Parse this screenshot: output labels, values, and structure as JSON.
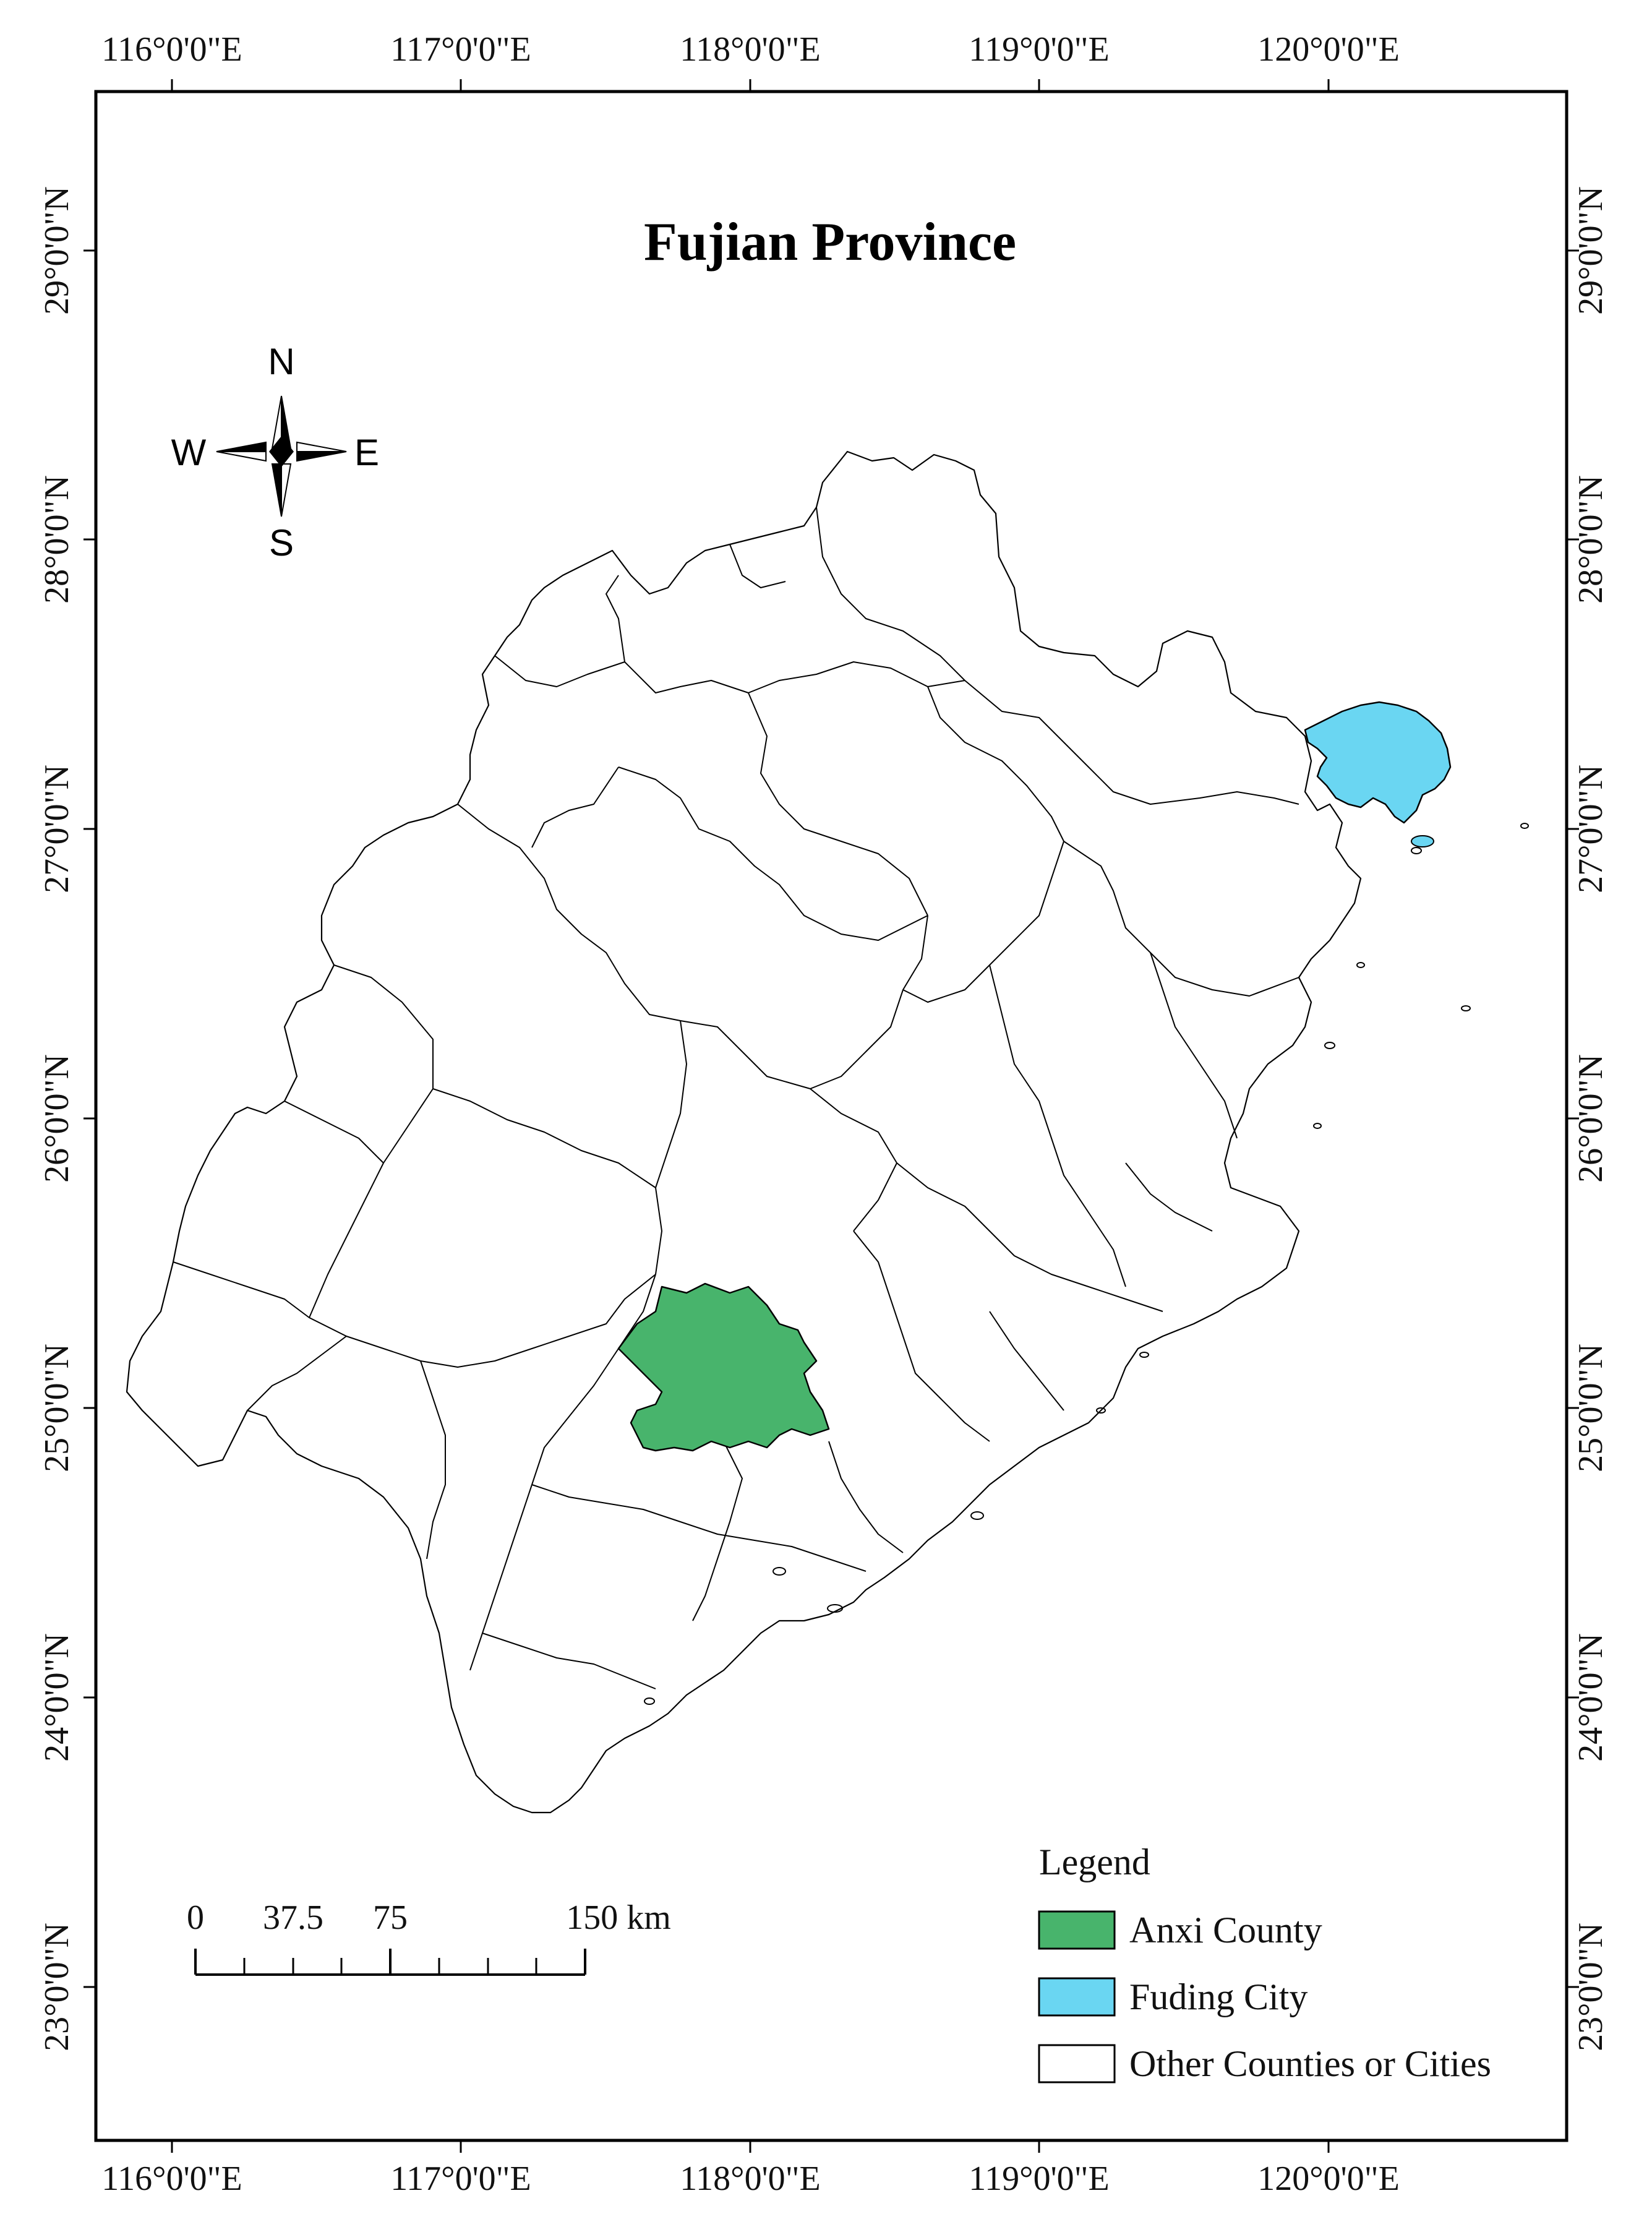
{
  "title": "Fujian Province",
  "longitude_labels": [
    "116°0'0\"E",
    "117°0'0\"E",
    "118°0'0\"E",
    "119°0'0\"E",
    "120°0'0\"E"
  ],
  "latitude_labels": [
    "29°0'0\"N",
    "28°0'0\"N",
    "27°0'0\"N",
    "26°0'0\"N",
    "25°0'0\"N",
    "24°0'0\"N",
    "23°0'0\"N"
  ],
  "compass": {
    "n": "N",
    "s": "S",
    "e": "E",
    "w": "W"
  },
  "legend": {
    "title": "Legend",
    "items": [
      {
        "label": "Anxi County",
        "color": "#48b46c"
      },
      {
        "label": "Fuding City",
        "color": "#6ad6f2"
      },
      {
        "label": "Other Counties or Cities",
        "color": "#ffffff"
      }
    ]
  },
  "scale_bar": {
    "labels": [
      "0",
      "37.5",
      "75",
      "150 km"
    ]
  },
  "colors": {
    "anxi": "#48b46c",
    "fuding": "#6ad6f2",
    "other": "#ffffff"
  }
}
